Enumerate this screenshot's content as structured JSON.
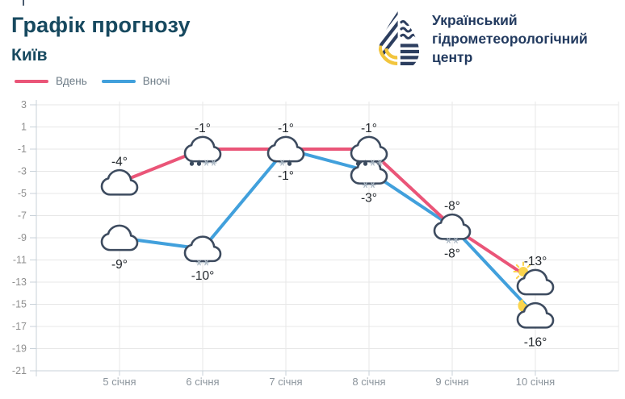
{
  "page": {
    "title": "Графік прогнозу",
    "subtitle": "Київ"
  },
  "logo": {
    "line1": "Український",
    "line2": "гідрометеорологічний",
    "line3": "центр"
  },
  "legend": {
    "items": [
      {
        "label": "Вдень",
        "color": "#ea5578"
      },
      {
        "label": "Вночі",
        "color": "#41a0dc"
      }
    ]
  },
  "colors": {
    "day": "#ea5578",
    "night": "#41a0dc",
    "cloud_outline": "#3d4b5f",
    "sun_moon": "#fbd44c",
    "drop": "#3a4a5e",
    "snowflake": "#a9b6c2",
    "grid": "#e7e7e7",
    "axis": "#c9d2d9",
    "title": "#17495f",
    "logo_navy": "#2c3e5f",
    "logo_yellow": "#f2c53d"
  },
  "chart_data": {
    "type": "line",
    "title": "Графік прогнозу",
    "subtitle": "Київ",
    "categories": [
      "5 січня",
      "6 січня",
      "7 січня",
      "8 січня",
      "9 січня",
      "10 січня"
    ],
    "series": [
      {
        "name": "Вдень",
        "color": "#ea5578",
        "values": [
          -4,
          -1,
          -1,
          -1,
          -8,
          -13
        ],
        "labels": [
          "-4°",
          "-1°",
          "-1°",
          "-1°",
          "-8°",
          "-13°"
        ],
        "label_position": "above",
        "markers": [
          "cloud",
          "cloud",
          "cloud",
          "cloud",
          "cloud",
          "sun-cloud"
        ],
        "precip": [
          "",
          "ddss",
          "sd",
          "ddss",
          "ss",
          ""
        ]
      },
      {
        "name": "Вночі",
        "color": "#41a0dc",
        "values": [
          -9,
          -10,
          -1,
          -3,
          -8,
          -16
        ],
        "labels": [
          "-9°",
          "-10°",
          "-1°",
          "-3°",
          "-8°",
          "-16°"
        ],
        "label_position": "below",
        "markers": [
          "cloud",
          "cloud",
          "none",
          "cloud",
          "none",
          "moon-cloud"
        ],
        "precip": [
          "",
          "ss",
          "",
          "ss",
          "",
          ""
        ]
      }
    ],
    "yticks": [
      3,
      1,
      -1,
      -3,
      -5,
      -7,
      -9,
      -11,
      -13,
      -15,
      -17,
      -19,
      -21
    ],
    "ylim": [
      -21,
      3
    ],
    "grid": true,
    "legend_position": "top-left"
  }
}
